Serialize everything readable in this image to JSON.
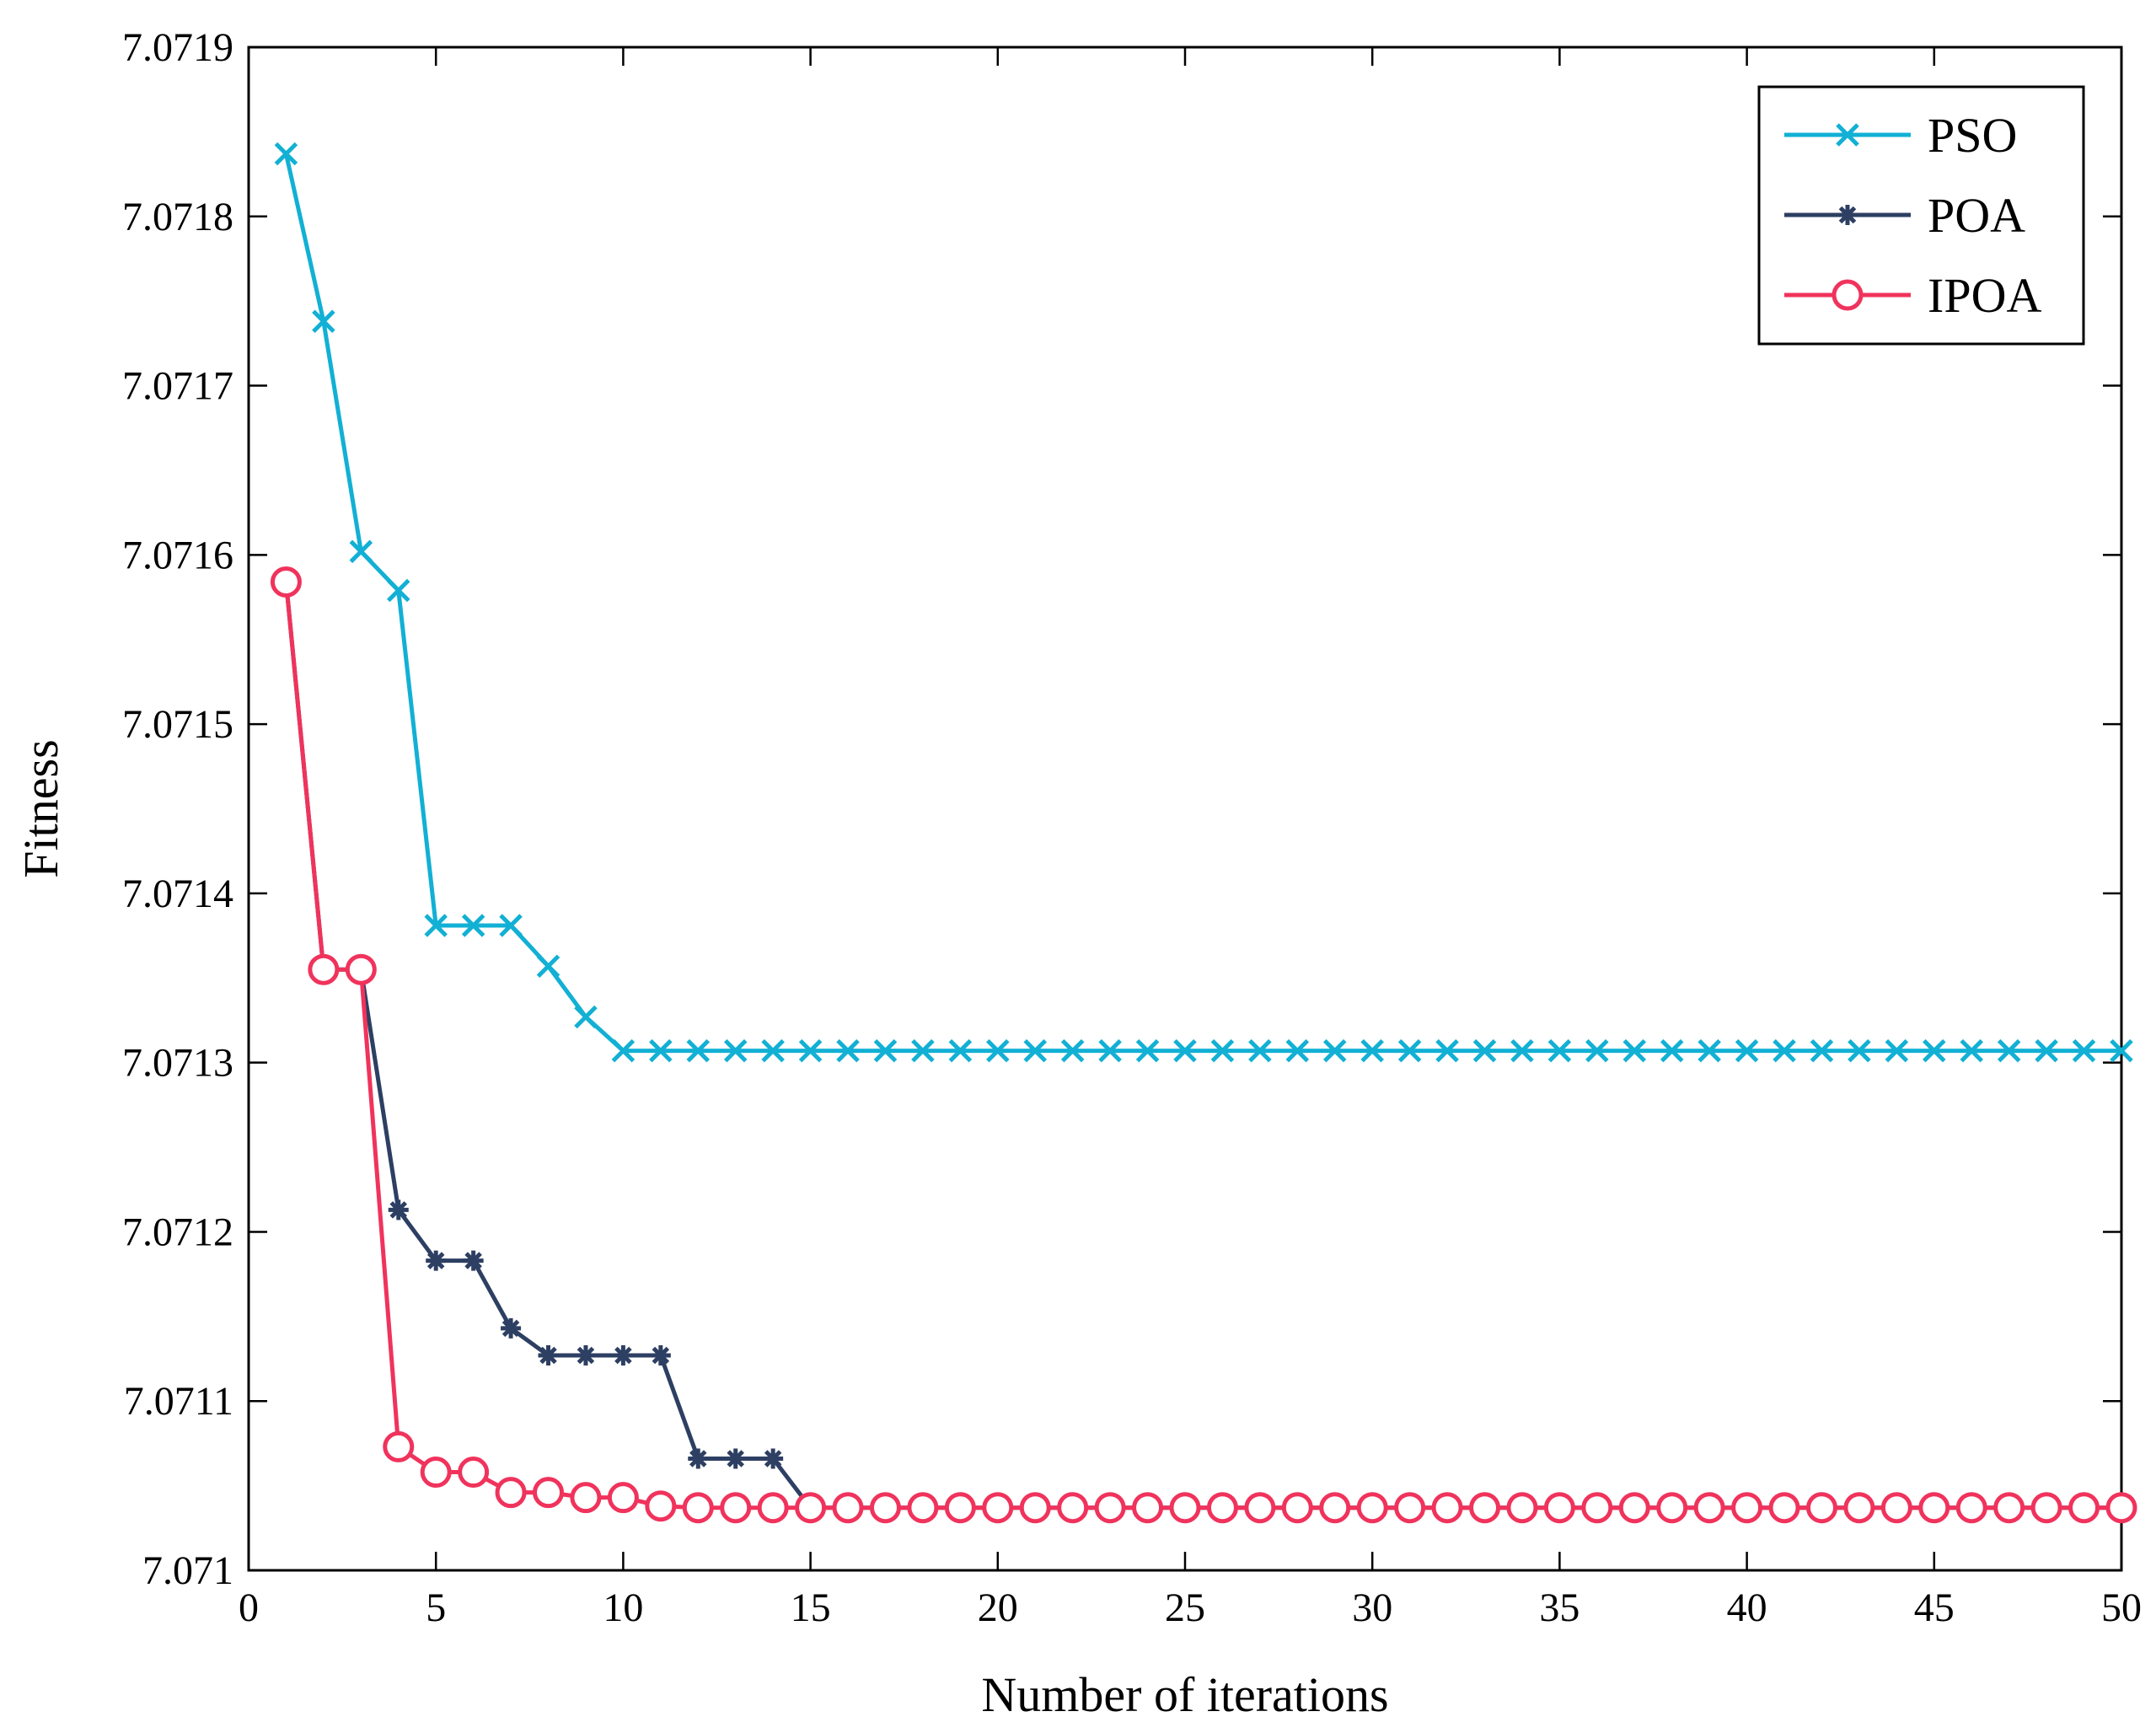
{
  "chart_data": {
    "type": "line",
    "title": "",
    "xlabel": "Number of iterations",
    "ylabel": "Fitness",
    "xlim": [
      0,
      50
    ],
    "ylim": [
      7.071,
      7.0719
    ],
    "x_ticks": [
      0,
      5,
      10,
      15,
      20,
      25,
      30,
      35,
      40,
      45,
      50
    ],
    "x_tick_labels": [
      "0",
      "5",
      "10",
      "15",
      "20",
      "25",
      "30",
      "35",
      "40",
      "45",
      "50"
    ],
    "y_ticks": [
      7.071,
      7.0711,
      7.0712,
      7.0713,
      7.0714,
      7.0715,
      7.0716,
      7.0717,
      7.0718,
      7.0719
    ],
    "y_tick_labels": [
      "7.071",
      "7.0711",
      "7.0712",
      "7.0713",
      "7.0714",
      "7.0715",
      "7.0716",
      "7.0717",
      "7.0718",
      "7.0719"
    ],
    "grid": false,
    "legend_position": "top-right",
    "x": [
      1,
      2,
      3,
      4,
      5,
      6,
      7,
      8,
      9,
      10,
      11,
      12,
      13,
      14,
      15,
      16,
      17,
      18,
      19,
      20,
      21,
      22,
      23,
      24,
      25,
      26,
      27,
      28,
      29,
      30,
      31,
      32,
      33,
      34,
      35,
      36,
      37,
      38,
      39,
      40,
      41,
      42,
      43,
      44,
      45,
      46,
      47,
      48,
      49,
      50
    ],
    "series": [
      {
        "name": "PSO",
        "color": "#12b0d4",
        "marker": "x",
        "values": [
          7.071837,
          7.071738,
          7.071602,
          7.071579,
          7.071381,
          7.071381,
          7.071381,
          7.071357,
          7.071327,
          7.071307,
          7.071307,
          7.071307,
          7.071307,
          7.071307,
          7.071307,
          7.071307,
          7.071307,
          7.071307,
          7.071307,
          7.071307,
          7.071307,
          7.071307,
          7.071307,
          7.071307,
          7.071307,
          7.071307,
          7.071307,
          7.071307,
          7.071307,
          7.071307,
          7.071307,
          7.071307,
          7.071307,
          7.071307,
          7.071307,
          7.071307,
          7.071307,
          7.071307,
          7.071307,
          7.071307,
          7.071307,
          7.071307,
          7.071307,
          7.071307,
          7.071307,
          7.071307,
          7.071307,
          7.071307,
          7.071307,
          7.071307
        ]
      },
      {
        "name": "POA",
        "color": "#2d3f62",
        "marker": "asterisk",
        "values": [
          7.071584,
          7.071355,
          7.071355,
          7.071213,
          7.071183,
          7.071183,
          7.071143,
          7.071127,
          7.071127,
          7.071127,
          7.071127,
          7.071066,
          7.071066,
          7.071066,
          7.071037,
          7.071037,
          7.071037,
          7.071037,
          7.071037,
          7.071037,
          7.071037,
          7.071037,
          7.071037,
          7.071037,
          7.071037,
          7.071037,
          7.071037,
          7.071037,
          7.071037,
          7.071037,
          7.071037,
          7.071037,
          7.071037,
          7.071037,
          7.071037,
          7.071037,
          7.071037,
          7.071037,
          7.071037,
          7.071037,
          7.071037,
          7.071037,
          7.071037,
          7.071037,
          7.071037,
          7.071037,
          7.071037,
          7.071037,
          7.071037,
          7.071037
        ]
      },
      {
        "name": "IPOA",
        "color": "#f0335c",
        "marker": "circle",
        "values": [
          7.071584,
          7.071355,
          7.071355,
          7.071073,
          7.071058,
          7.071058,
          7.071046,
          7.071046,
          7.071043,
          7.071043,
          7.071038,
          7.071037,
          7.071037,
          7.071037,
          7.071037,
          7.071037,
          7.071037,
          7.071037,
          7.071037,
          7.071037,
          7.071037,
          7.071037,
          7.071037,
          7.071037,
          7.071037,
          7.071037,
          7.071037,
          7.071037,
          7.071037,
          7.071037,
          7.071037,
          7.071037,
          7.071037,
          7.071037,
          7.071037,
          7.071037,
          7.071037,
          7.071037,
          7.071037,
          7.071037,
          7.071037,
          7.071037,
          7.071037,
          7.071037,
          7.071037,
          7.071037,
          7.071037,
          7.071037,
          7.071037,
          7.071037
        ]
      }
    ]
  }
}
